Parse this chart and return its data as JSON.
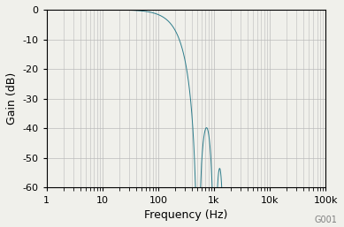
{
  "title": "",
  "xlabel": "Frequency (Hz)",
  "ylabel": "Gain (dB)",
  "annotation": "G001",
  "xlim": [
    1,
    100000
  ],
  "ylim": [
    -60,
    0
  ],
  "yticks": [
    0,
    -10,
    -20,
    -30,
    -40,
    -50,
    -60
  ],
  "xtick_labels": [
    "1",
    "10",
    "100",
    "1k",
    "10k",
    "100k"
  ],
  "xtick_vals": [
    1,
    10,
    100,
    1000,
    10000,
    100000
  ],
  "line_color": "#2d7d8c",
  "background_color": "#f0f0eb",
  "grid_color": "#bbbbbb",
  "figsize": [
    3.89,
    2.57
  ],
  "dpi": 100,
  "f_conv": 512
}
